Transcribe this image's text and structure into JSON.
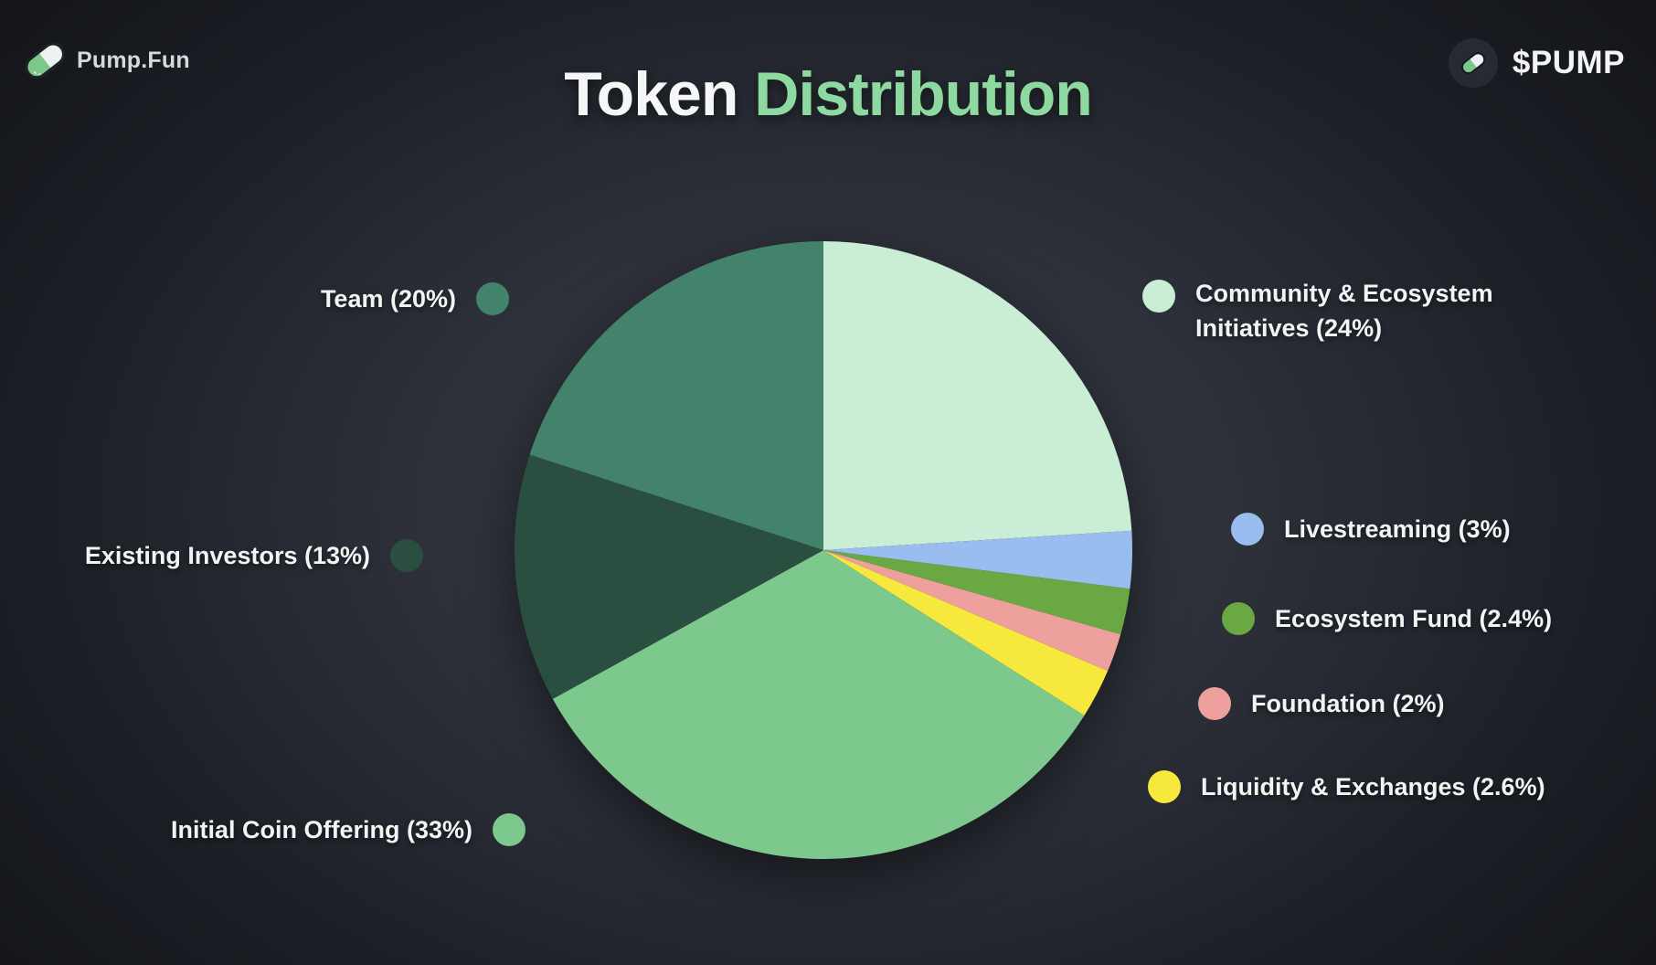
{
  "header": {
    "brand": "Pump.Fun",
    "token_badge": "$PUMP"
  },
  "title": {
    "part1": "Token",
    "part2": "Distribution"
  },
  "colors": {
    "accent_green": "#8ed9a0",
    "background_center": "#3b3e49",
    "background_corner": "#14161b",
    "badge_circle": "#262a33",
    "text_light": "#f2f4f4"
  },
  "chart_data": {
    "type": "pie",
    "title": "Token Distribution",
    "start_angle_deg": 0,
    "direction": "clockwise-from-top",
    "legend_position": "radial-around-pie",
    "slices": [
      {
        "name": "community",
        "label": "Community & Ecosystem Initiatives (24%)",
        "label_line1": "Community & Ecosystem",
        "label_line2": "Initiatives (24%)",
        "value": 24,
        "color": "#c9eed5"
      },
      {
        "name": "livestreaming",
        "label": "Livestreaming (3%)",
        "value": 3,
        "color": "#99bdee"
      },
      {
        "name": "ecosystem-fund",
        "label": "Ecosystem Fund (2.4%)",
        "value": 2.4,
        "color": "#69a843"
      },
      {
        "name": "foundation",
        "label": "Foundation (2%)",
        "value": 2,
        "color": "#eea09c"
      },
      {
        "name": "liquidity-exchanges",
        "label": "Liquidity & Exchanges (2.6%)",
        "value": 2.6,
        "color": "#f7e83e"
      },
      {
        "name": "initial-coin-offering",
        "label": "Initial Coin Offering (33%)",
        "value": 33,
        "color": "#7dc88c"
      },
      {
        "name": "existing-investors",
        "label": "Existing Investors (13%)",
        "value": 13,
        "color": "#2a4e3f"
      },
      {
        "name": "team",
        "label": "Team (20%)",
        "value": 20,
        "color": "#43836c"
      }
    ]
  }
}
